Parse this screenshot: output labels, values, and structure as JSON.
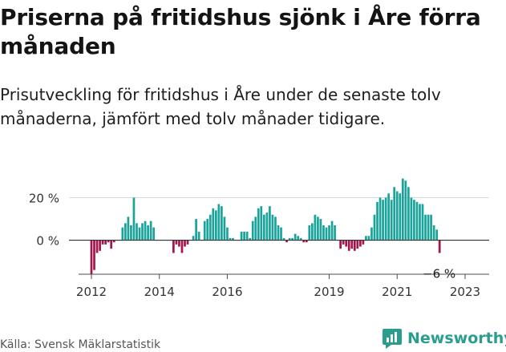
{
  "title": "Priserna på fritidshus sjönk i Åre förra månaden",
  "subtitle": "Prisutveckling för fritidshus i Åre under de senaste tolv månaderna, jämfört med tolv månader tidigare.",
  "source": "Källa: Svensk Mäklarstatistik",
  "brand": "Newsworthy",
  "colors": {
    "positive": "#1aa39a",
    "negative": "#a3154d",
    "grid": "#d9d9d9",
    "baseline": "#333333"
  },
  "chart_data": {
    "type": "bar",
    "x_start": "2012-01",
    "x_end": "2023-04",
    "xticks": [
      2012,
      2014,
      2016,
      2019,
      2021,
      2023
    ],
    "yticks": [
      0,
      20
    ],
    "ytick_labels": [
      "0 %",
      "20 %"
    ],
    "ylim": [
      -16,
      30
    ],
    "unit": "%",
    "grid": true,
    "legend": "none",
    "annotation": "−6 %",
    "values": [
      -16,
      -14,
      -6,
      -5,
      -2,
      -2,
      -1,
      -4,
      -1,
      0,
      0,
      6,
      8,
      11,
      7,
      20,
      8,
      6,
      8,
      9,
      7,
      9,
      6,
      0,
      0,
      0,
      0,
      0,
      0,
      -6,
      -2,
      -3,
      -6,
      -3,
      -2,
      0,
      2,
      10,
      4,
      0,
      9,
      10,
      12,
      15,
      14,
      17,
      16,
      11,
      6,
      1,
      1,
      0,
      0,
      4,
      4,
      4,
      1,
      9,
      11,
      15,
      16,
      12,
      13,
      16,
      12,
      11,
      7,
      6,
      1,
      -1,
      1,
      1,
      3,
      2,
      1,
      -1,
      -1,
      7,
      8,
      12,
      11,
      10,
      7,
      6,
      7,
      9,
      7,
      0,
      -4,
      -2,
      -3,
      -5,
      -4,
      -5,
      -4,
      -3,
      -2,
      2,
      2,
      6,
      12,
      18,
      20,
      19,
      20,
      22,
      19,
      25,
      23,
      22,
      29,
      28,
      25,
      20,
      19,
      18,
      17,
      17,
      12,
      12,
      12,
      7,
      5,
      -6
    ]
  }
}
